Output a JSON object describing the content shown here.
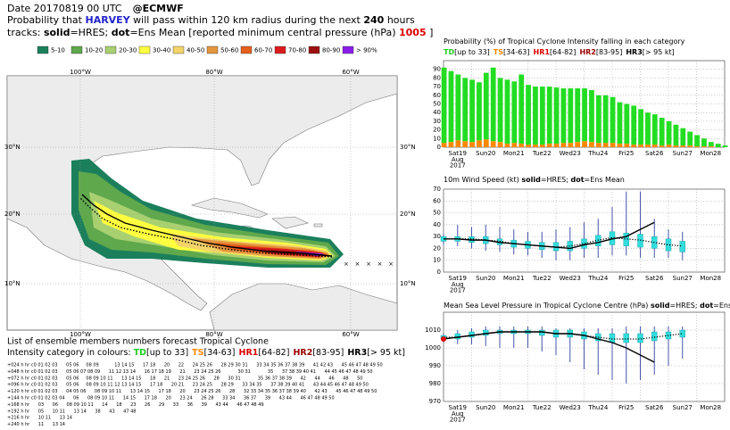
{
  "header": {
    "date": "Date 20170819 00 UTC",
    "org": "@ECMWF",
    "line2": [
      "Probability that ",
      "HARVEY",
      " will pass within 120 km radius during the next ",
      "240",
      " hours"
    ],
    "line3": [
      "tracks: ",
      "solid",
      "=HRES; ",
      "dot",
      "=Ens Mean [reported minimum central pressure (hPa) "
    ],
    "pressure_value": 1005,
    "line3_end": " ]"
  },
  "map": {
    "lon_labels": [
      "100°W",
      "80°W",
      "60°W"
    ],
    "lat_labels": [
      "30°N",
      "20°N",
      "10°N"
    ],
    "legend": [
      {
        "label": "5-10",
        "color": "#1b7f5c"
      },
      {
        "label": "10-20",
        "color": "#5fa84c"
      },
      {
        "label": "20-30",
        "color": "#a8d070"
      },
      {
        "label": "30-40",
        "color": "#ffff40"
      },
      {
        "label": "40-50",
        "color": "#f2d468"
      },
      {
        "label": "50-60",
        "color": "#e4963c"
      },
      {
        "label": "60-70",
        "color": "#e4601c"
      },
      {
        "label": "70-80",
        "color": "#dc1c1c"
      },
      {
        "label": "80-90",
        "color": "#9a1010"
      },
      {
        "label": "> 90%",
        "color": "#8a1ee8"
      }
    ]
  },
  "intensity_categories": [
    {
      "name": "TD",
      "range": "[up to 33]",
      "color": "#22cc22"
    },
    {
      "name": "TS",
      "range": "[34-63]",
      "color": "#ff8800"
    },
    {
      "name": "HR1",
      "range": "[64-82]",
      "color": "#dd0000"
    },
    {
      "name": "HR2",
      "range": "[83-95]",
      "color": "#990000"
    },
    {
      "name": "HR3",
      "range": "[> 95 kt]",
      "color": "#000000"
    }
  ],
  "chart_data": [
    {
      "type": "bar",
      "title_parts": [
        "Probability (%) of Tropical Cyclone Intensity falling in each category"
      ],
      "x": [
        0,
        6,
        12,
        18,
        24,
        30,
        36,
        42,
        48,
        54,
        60,
        66,
        72,
        78,
        84,
        90,
        96,
        102,
        108,
        114,
        120,
        126,
        132,
        138,
        144,
        150,
        156,
        162,
        168,
        174,
        180,
        186,
        192,
        198,
        204,
        210,
        216,
        222,
        228,
        234,
        240
      ],
      "xlim": [
        0,
        240
      ],
      "xticks": [
        {
          "value": 0,
          "label": "Sat19"
        },
        {
          "value": 24,
          "label": "Sun20"
        },
        {
          "value": 48,
          "label": "Mon21"
        },
        {
          "value": 72,
          "label": "Tue22"
        },
        {
          "value": 96,
          "label": "Wed23"
        },
        {
          "value": 120,
          "label": "Thu24"
        },
        {
          "value": 144,
          "label": "Fri25"
        },
        {
          "value": 168,
          "label": "Sat26"
        },
        {
          "value": 192,
          "label": "Sun27"
        },
        {
          "value": 216,
          "label": "Mon28"
        }
      ],
      "xtick_colors": [
        "#000",
        "#cc0000",
        "#000",
        "#000",
        "#000",
        "#000",
        "#000",
        "#000",
        "#cc0000",
        "#000"
      ],
      "x_sub_labels": [
        "Aug",
        "2017"
      ],
      "ylim": [
        0,
        100
      ],
      "yticks": [
        0,
        10,
        20,
        30,
        40,
        50,
        60,
        70,
        80,
        90
      ],
      "series": [
        {
          "color": "#ff8800",
          "values": [
            5,
            6,
            8,
            7,
            6,
            8,
            9,
            7,
            6,
            4,
            5,
            4,
            3,
            3,
            3,
            4,
            4,
            5,
            5,
            6,
            7,
            6,
            5,
            5,
            5,
            4,
            4,
            3,
            3,
            3,
            3,
            2,
            3,
            2,
            2,
            2,
            1,
            1,
            1,
            0,
            0
          ]
        },
        {
          "color": "#22dd22",
          "values": [
            87,
            82,
            76,
            73,
            72,
            67,
            77,
            85,
            74,
            74,
            71,
            80,
            69,
            67,
            67,
            66,
            65,
            63,
            63,
            62,
            61,
            60,
            55,
            55,
            53,
            48,
            46,
            45,
            41,
            37,
            35,
            32,
            27,
            24,
            20,
            16,
            13,
            9,
            5,
            4,
            2
          ]
        }
      ]
    },
    {
      "type": "box",
      "title_parts": [
        "10m Wind Speed (kt) ",
        "solid",
        "=HRES; ",
        "dot",
        "=Ens Mean"
      ],
      "x": [
        0,
        12,
        24,
        36,
        48,
        60,
        72,
        84,
        96,
        108,
        120,
        132,
        144,
        156,
        168,
        180,
        192,
        204,
        216,
        228,
        240
      ],
      "xlim": [
        0,
        240
      ],
      "xticks": [
        {
          "value": 0,
          "label": "Sat19"
        },
        {
          "value": 24,
          "label": "Sun20"
        },
        {
          "value": 48,
          "label": "Mon21"
        },
        {
          "value": 72,
          "label": "Tue22"
        },
        {
          "value": 96,
          "label": "Wed23"
        },
        {
          "value": 120,
          "label": "Thu24"
        },
        {
          "value": 144,
          "label": "Fri25"
        },
        {
          "value": 168,
          "label": "Sat26"
        },
        {
          "value": 192,
          "label": "Sun27"
        },
        {
          "value": 216,
          "label": "Mon28"
        }
      ],
      "xtick_colors": [
        "#000",
        "#cc0000",
        "#000",
        "#000",
        "#000",
        "#000",
        "#000",
        "#000",
        "#cc0000",
        "#000"
      ],
      "x_sub_labels": [
        "Aug",
        "2017"
      ],
      "ylim": [
        0,
        70
      ],
      "yticks": [
        0,
        10,
        20,
        30,
        40,
        50,
        60,
        70
      ],
      "series": [
        {
          "color": "#000000",
          "style": "solid",
          "values": [
            28,
            28,
            27,
            27,
            25,
            24,
            23,
            22,
            21,
            20,
            23,
            25,
            28,
            30,
            36,
            42,
            null,
            null,
            null,
            null,
            null
          ]
        },
        {
          "color": "#000000",
          "style": "dot",
          "values": [
            28,
            28,
            28,
            27,
            26,
            24,
            23,
            22,
            21,
            22,
            24,
            27,
            29,
            28,
            27,
            25,
            23,
            22,
            null,
            null,
            null
          ]
        }
      ],
      "boxes": {
        "color": "#33dddd",
        "whisker_color": "#4455aa",
        "q1": [
          26,
          26,
          25,
          24,
          23,
          21,
          20,
          19,
          18,
          18,
          20,
          22,
          23,
          22,
          21,
          20,
          18,
          17,
          null,
          null,
          null
        ],
        "q3": [
          30,
          30,
          30,
          30,
          28,
          27,
          26,
          25,
          25,
          26,
          28,
          31,
          34,
          33,
          32,
          30,
          28,
          26,
          null,
          null,
          null
        ],
        "whisker_low": [
          23,
          22,
          20,
          18,
          17,
          15,
          14,
          12,
          10,
          10,
          12,
          12,
          14,
          14,
          12,
          12,
          12,
          10,
          null,
          null,
          null
        ],
        "whisker_high": [
          32,
          40,
          38,
          40,
          38,
          36,
          34,
          34,
          36,
          38,
          42,
          45,
          55,
          68,
          68,
          45,
          36,
          34,
          null,
          null,
          null
        ]
      }
    },
    {
      "type": "box",
      "title_parts": [
        "Mean Sea Level Pressure in Tropical Cyclone Centre (hPa) ",
        "solid",
        "=HRES; ",
        "dot",
        "=Ens Mean"
      ],
      "x": [
        0,
        12,
        24,
        36,
        48,
        60,
        72,
        84,
        96,
        108,
        120,
        132,
        144,
        156,
        168,
        180,
        192,
        204,
        216,
        228,
        240
      ],
      "xlim": [
        0,
        240
      ],
      "xticks": [
        {
          "value": 0,
          "label": "Sat19"
        },
        {
          "value": 24,
          "label": "Sun20"
        },
        {
          "value": 48,
          "label": "Mon21"
        },
        {
          "value": 72,
          "label": "Tue22"
        },
        {
          "value": 96,
          "label": "Wed23"
        },
        {
          "value": 120,
          "label": "Thu24"
        },
        {
          "value": 144,
          "label": "Fri25"
        },
        {
          "value": 168,
          "label": "Sat26"
        },
        {
          "value": 192,
          "label": "Sun27"
        },
        {
          "value": 216,
          "label": "Mon28"
        }
      ],
      "xtick_colors": [
        "#000",
        "#cc0000",
        "#000",
        "#000",
        "#000",
        "#000",
        "#000",
        "#000",
        "#cc0000",
        "#000"
      ],
      "x_sub_labels": [
        "Aug",
        "2017"
      ],
      "ylim": [
        970,
        1020
      ],
      "yticks": [
        970,
        980,
        990,
        1000,
        1010
      ],
      "series": [
        {
          "color": "#000000",
          "style": "solid",
          "values": [
            1005,
            1006,
            1007,
            1008,
            1009,
            1009,
            1009,
            1009,
            1008,
            1008,
            1007,
            1005,
            1003,
            1000,
            996,
            992,
            null,
            null,
            null,
            null,
            null
          ]
        },
        {
          "color": "#000000",
          "style": "dot",
          "values": [
            1006,
            1006,
            1007,
            1008,
            1009,
            1009,
            1009,
            1009,
            1008,
            1008,
            1007,
            1006,
            1005,
            1005,
            1005,
            1006,
            1007,
            1008,
            null,
            null,
            null
          ]
        }
      ],
      "boxes": {
        "color": "#33dddd",
        "whisker_color": "#4455aa",
        "q1": [
          1005,
          1005,
          1006,
          1007,
          1008,
          1008,
          1008,
          1007,
          1006,
          1006,
          1005,
          1004,
          1003,
          1003,
          1003,
          1004,
          1005,
          1006,
          null,
          null,
          null
        ],
        "q3": [
          1007,
          1008,
          1009,
          1010,
          1010,
          1010,
          1010,
          1010,
          1010,
          1010,
          1009,
          1008,
          1008,
          1008,
          1008,
          1009,
          1009,
          1010,
          null,
          null,
          null
        ],
        "whisker_low": [
          1003,
          1002,
          1002,
          1001,
          1000,
          1000,
          1000,
          998,
          996,
          992,
          988,
          985,
          982,
          980,
          982,
          985,
          990,
          994,
          null,
          null,
          null
        ],
        "whisker_high": [
          1008,
          1010,
          1011,
          1012,
          1012,
          1012,
          1012,
          1012,
          1011,
          1011,
          1011,
          1011,
          1011,
          1012,
          1012,
          1012,
          1012,
          1012,
          null,
          null,
          null
        ]
      }
    }
  ],
  "members": {
    "title": "List of ensemble members numbers forecast Tropical Cyclone",
    "subtitle": "Intensity category in colours: ",
    "rows": [
      {
        "step": "+024 h",
        "text": "hr c0 01 02 03      05 06     08 09           13 14 15      17 18      20      22      24 25 26      28 29 30 31      33 34 35 36 37 38 39      41 42 43      45 46 47 48 49 50"
      },
      {
        "step": "+048 h",
        "text": "hr c0 01 02 03      05 06 07 08 09      11 12 13 14      16 17 18 19      21      23 24 25 26            30 31            35      37 38 39 40 41      44 45 46 47 48 49 50"
      },
      {
        "step": "+072 h",
        "text": "hr c0 01 02 03      05 06     08 09 10 11      13 14 15      18      21      23 24 25 26      28      30 31            35 36 37 38 39      42      44      46      48      50"
      },
      {
        "step": "+096 h",
        "text": "hr c0 01 02 03      05 06     08 09 10 11 12 13 14 15      17 18      20 21      23 24 25      28 29      33 34 35      37 38 39 40 41      43 44 45 46 47 48 49 50"
      },
      {
        "step": "+120 h",
        "text": "hr c0 01 02 03      04 05 06      08 09 10 11      13 14 15      17 18      20      23 24 25 26      28      32 33 34 35 36 37 38 39 40      42 43      45 46 47 48 49 50"
      },
      {
        "step": "+144 h",
        "text": "hr c0 01 02 03 04      06      08 09 10 11      14 15      17 18      20      23 24      26 28      33 34      36 37      39      43 44      46 47 48 49 50"
      },
      {
        "step": "+168 h",
        "text": "hr      03      06      08 09 10 11      14      18      23      26      29      33      36      39      43 44      46 47 48 49"
      },
      {
        "step": "+192 h",
        "text": "hr      05      10 11      13 14      38      43      47 48"
      },
      {
        "step": "+216 h",
        "text": "hr      10 11      13 14"
      },
      {
        "step": "+240 h",
        "text": "hr      11      13 14"
      }
    ]
  }
}
